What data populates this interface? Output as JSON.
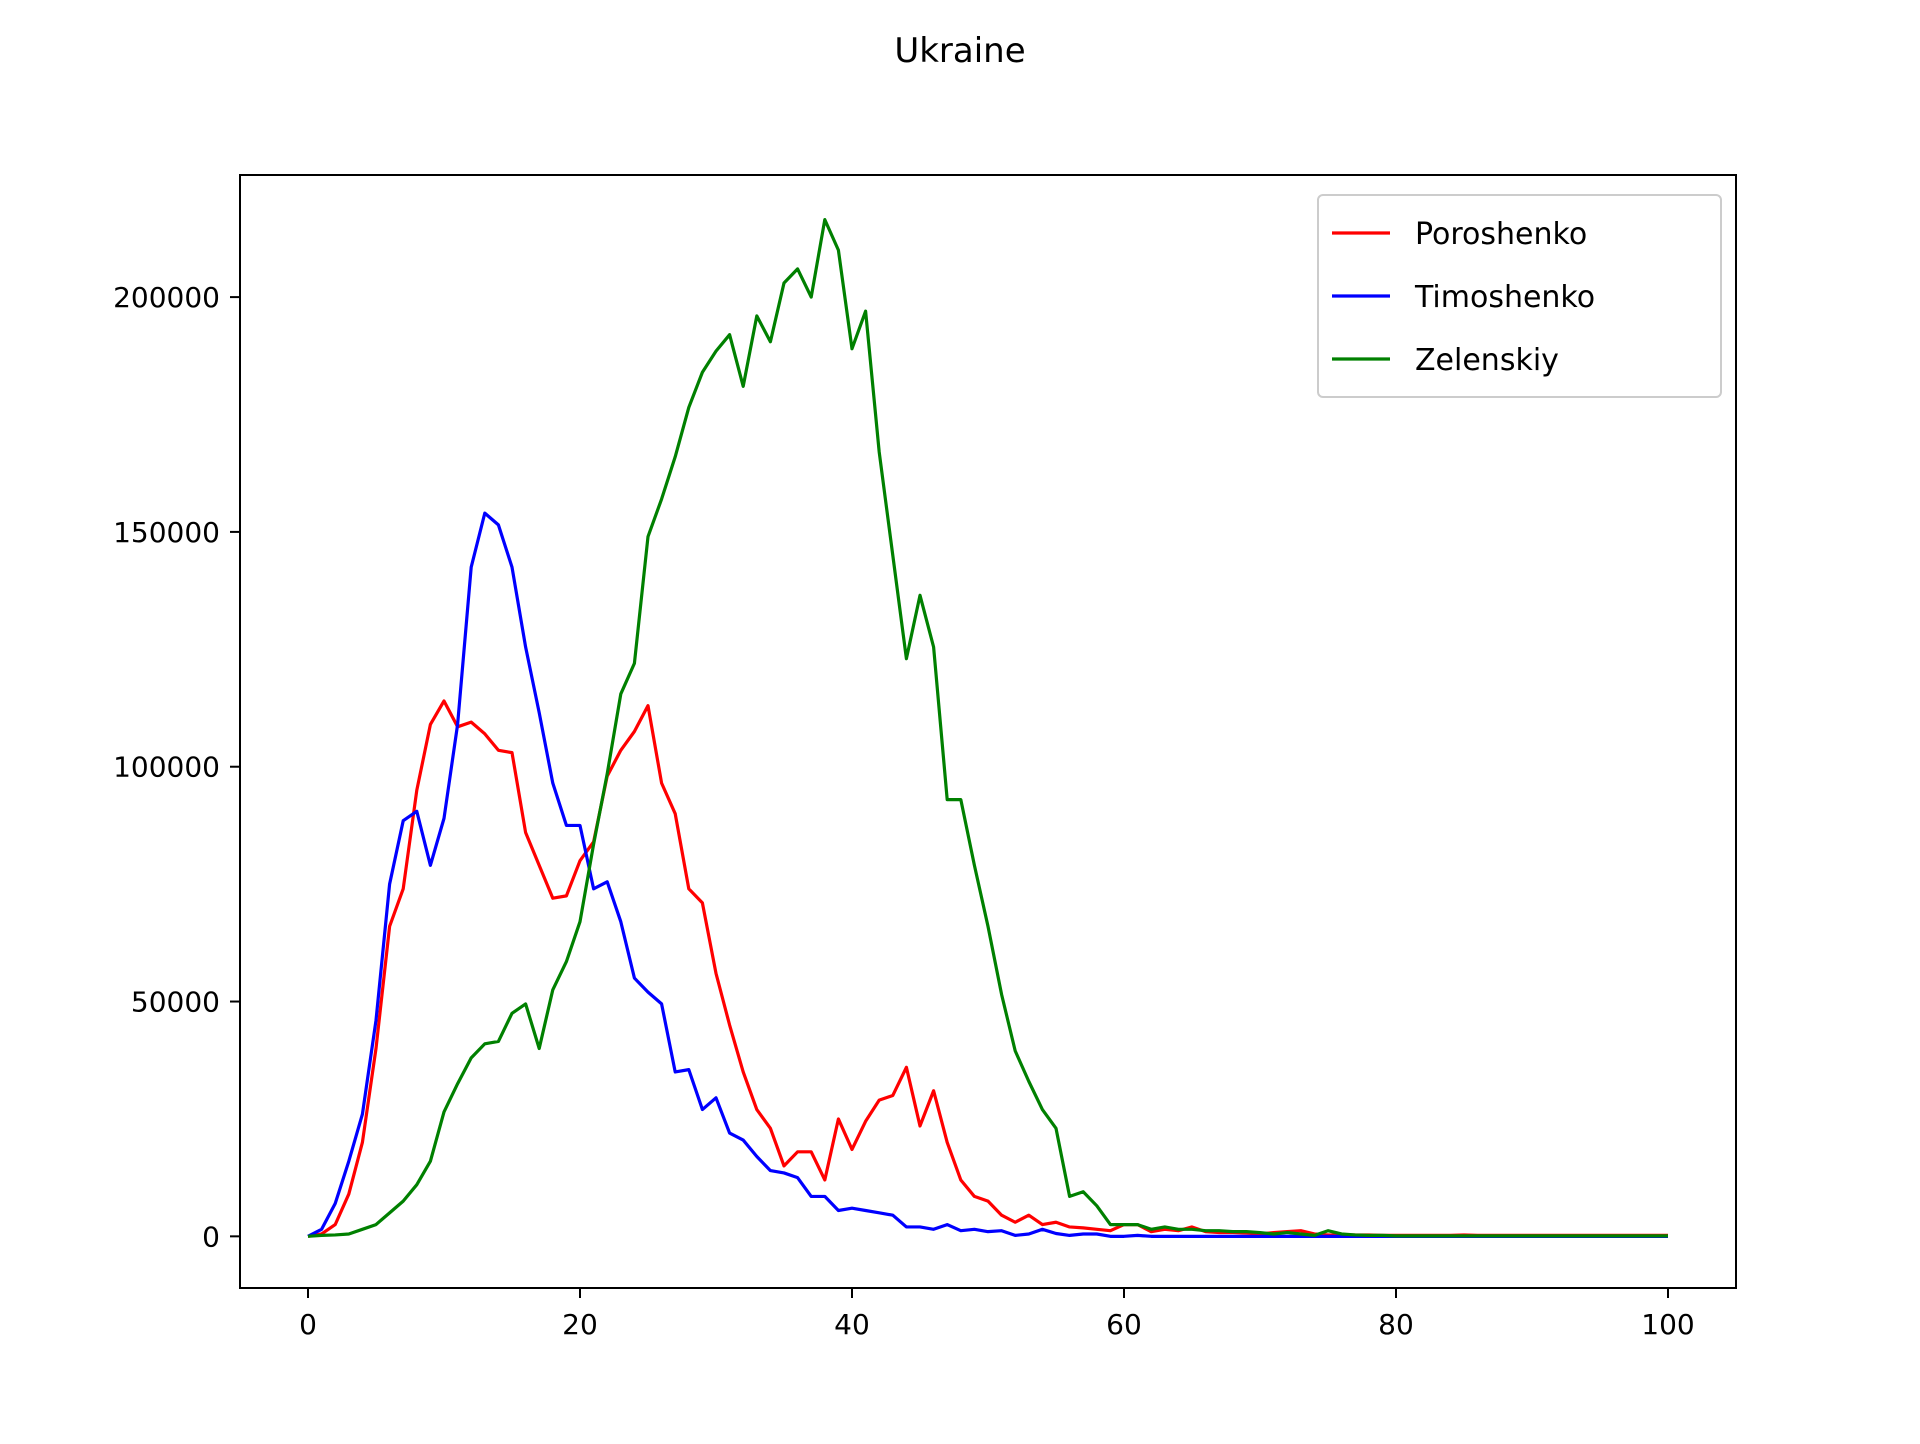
{
  "chart_data": {
    "type": "line",
    "title": "Ukraine",
    "xlabel": "",
    "ylabel": "",
    "xlim": [
      -5,
      105
    ],
    "ylim": [
      -11000,
      226000
    ],
    "xticks": [
      0,
      20,
      40,
      60,
      80,
      100
    ],
    "yticks": [
      0,
      50000,
      100000,
      150000,
      200000
    ],
    "xtick_labels": [
      "0",
      "20",
      "40",
      "60",
      "80",
      "100"
    ],
    "ytick_labels": [
      "0",
      "50000",
      "100000",
      "150000",
      "200000"
    ],
    "grid": false,
    "legend_position": "top-right",
    "x": [
      0,
      1,
      2,
      3,
      4,
      5,
      6,
      7,
      8,
      9,
      10,
      11,
      12,
      13,
      14,
      15,
      16,
      17,
      18,
      19,
      20,
      21,
      22,
      23,
      24,
      25,
      26,
      27,
      28,
      29,
      30,
      31,
      32,
      33,
      34,
      35,
      36,
      37,
      38,
      39,
      40,
      41,
      42,
      43,
      44,
      45,
      46,
      47,
      48,
      49,
      50,
      51,
      52,
      53,
      54,
      55,
      56,
      57,
      58,
      59,
      60,
      61,
      62,
      63,
      64,
      65,
      66,
      67,
      68,
      69,
      70,
      71,
      72,
      73,
      74,
      75,
      76,
      77,
      78,
      79,
      80,
      81,
      82,
      83,
      84,
      85,
      86,
      87,
      88,
      89,
      90,
      91,
      92,
      93,
      94,
      95,
      96,
      97,
      98,
      99,
      100
    ],
    "series": [
      {
        "name": "Poroshenko",
        "color": "#ff0000",
        "values": [
          0,
          500,
          2500,
          9000,
          20000,
          40000,
          66000,
          74000,
          95000,
          109000,
          114000,
          108500,
          109500,
          107000,
          103500,
          103000,
          86000,
          79000,
          72000,
          72500,
          80000,
          84000,
          98000,
          103500,
          107500,
          113000,
          96500,
          90000,
          74000,
          71000,
          56000,
          45000,
          35000,
          27000,
          23000,
          15000,
          18000,
          18000,
          12000,
          25000,
          18500,
          24500,
          29000,
          30000,
          36000,
          23500,
          31000,
          20000,
          12000,
          8500,
          7500,
          4500,
          3000,
          4500,
          2500,
          3000,
          2000,
          1800,
          1500,
          1200,
          2500,
          2500,
          1000,
          1500,
          1200,
          2000,
          1000,
          800,
          800,
          700,
          500,
          800,
          1000,
          1200,
          500,
          300,
          300,
          300,
          300,
          200,
          200,
          200,
          200,
          200,
          200,
          300,
          200,
          200,
          200,
          200,
          200,
          200,
          200,
          200,
          200,
          200,
          200,
          200,
          200,
          200,
          200
        ]
      },
      {
        "name": "Timoshenko",
        "color": "#0000ff",
        "values": [
          0,
          1500,
          7000,
          16000,
          26000,
          46000,
          75000,
          88500,
          90500,
          79000,
          89000,
          109000,
          142500,
          154000,
          151500,
          142500,
          125500,
          111500,
          96500,
          87500,
          87500,
          74000,
          75500,
          67000,
          55000,
          52000,
          49500,
          35000,
          35500,
          27000,
          29500,
          22000,
          20500,
          17000,
          14000,
          13500,
          12500,
          8500,
          8500,
          5500,
          6000,
          5500,
          5000,
          4500,
          2000,
          2000,
          1500,
          2500,
          1200,
          1500,
          1000,
          1200,
          200,
          500,
          1500,
          600,
          200,
          500,
          500,
          0,
          0,
          200,
          0,
          0,
          0,
          0,
          0,
          0,
          0,
          0,
          0,
          0,
          0,
          0,
          0,
          0,
          0,
          0,
          0,
          0,
          0,
          0,
          0,
          0,
          0,
          0,
          0,
          0,
          0,
          0,
          0,
          0,
          0,
          0,
          0,
          0,
          0,
          0,
          0,
          0,
          0
        ]
      },
      {
        "name": "Zelenskiy",
        "color": "#008000",
        "values": [
          0,
          200,
          300,
          500,
          1500,
          2500,
          5000,
          7500,
          11000,
          16000,
          26500,
          32500,
          38000,
          41000,
          41500,
          47500,
          49500,
          40000,
          52500,
          58500,
          67000,
          83500,
          98500,
          115500,
          122000,
          149000,
          157000,
          166000,
          176500,
          184000,
          188500,
          192000,
          181000,
          196000,
          190500,
          203000,
          206000,
          200000,
          216500,
          210000,
          189000,
          197000,
          167000,
          145000,
          123000,
          136500,
          125500,
          93000,
          93000,
          79000,
          66000,
          51500,
          39500,
          33000,
          27000,
          23000,
          8500,
          9500,
          6500,
          2500,
          2500,
          2500,
          1500,
          2000,
          1500,
          1500,
          1200,
          1200,
          1000,
          1000,
          800,
          500,
          800,
          500,
          200,
          1200,
          500,
          300,
          200,
          200,
          100,
          100,
          100,
          100,
          100,
          100,
          100,
          100,
          100,
          100,
          100,
          100,
          100,
          100,
          100,
          100,
          100,
          100,
          100,
          100,
          100
        ]
      }
    ]
  }
}
